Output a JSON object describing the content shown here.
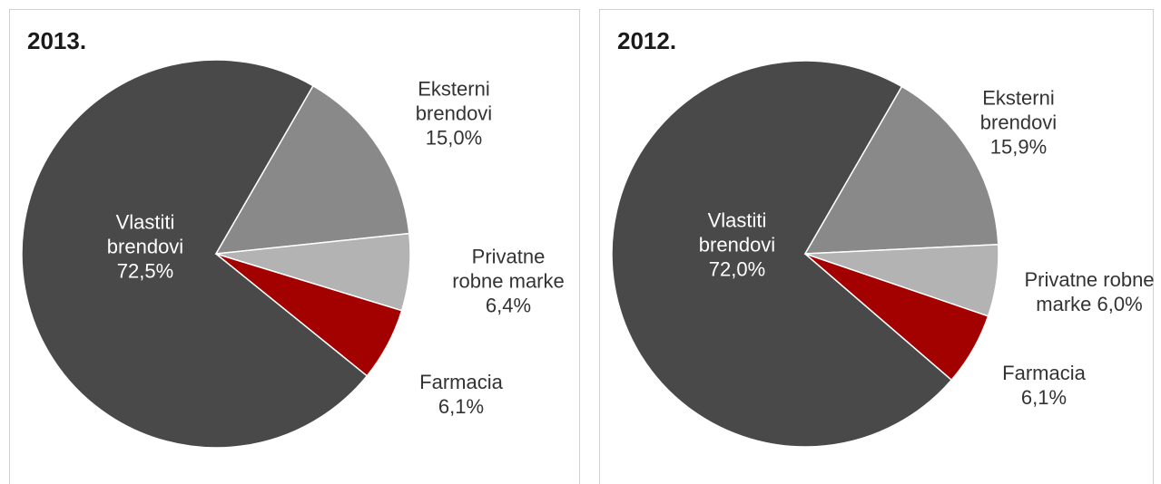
{
  "chart_data": [
    {
      "type": "pie",
      "title": "2013.",
      "categories": [
        "Vlastiti brendovi",
        "Eksterni brendovi",
        "Privatne robne marke",
        "Farmacia"
      ],
      "values": [
        72.5,
        15.0,
        6.4,
        6.1
      ],
      "value_labels": [
        "72,5%",
        "15,0%",
        "6,4%",
        "6,1%"
      ],
      "colors": [
        "#494949",
        "#898989",
        "#b3b3b3",
        "#a30000"
      ]
    },
    {
      "type": "pie",
      "title": "2012.",
      "categories": [
        "Vlastiti brendovi",
        "Eksterni brendovi",
        "Privatne robne marke",
        "Farmacia"
      ],
      "values": [
        72.0,
        15.9,
        6.0,
        6.1
      ],
      "value_labels": [
        "72,0%",
        "15,9%",
        "6,0%",
        "6,1%"
      ],
      "colors": [
        "#494949",
        "#898989",
        "#b3b3b3",
        "#a30000"
      ]
    }
  ]
}
